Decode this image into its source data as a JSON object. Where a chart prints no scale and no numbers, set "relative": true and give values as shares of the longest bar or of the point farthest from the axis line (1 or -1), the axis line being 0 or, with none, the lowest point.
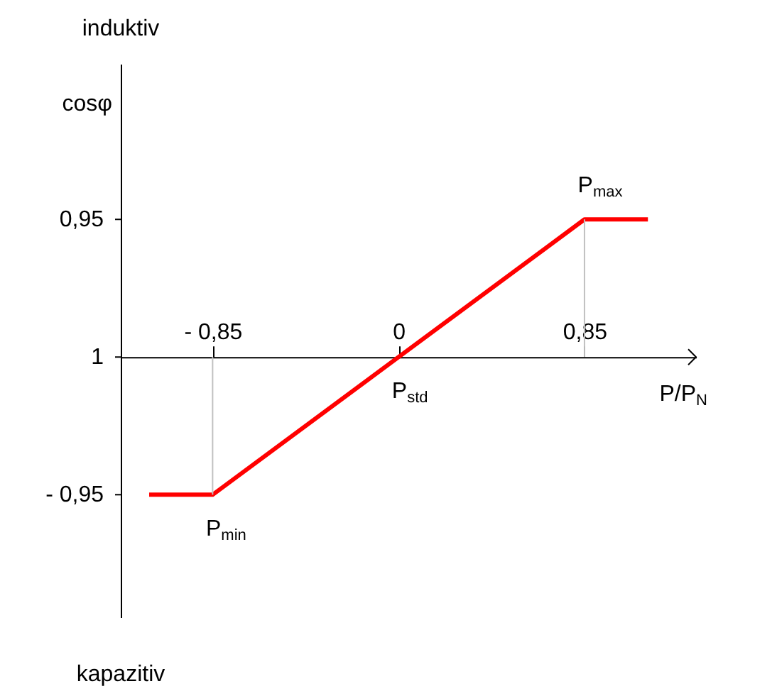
{
  "chart_data": {
    "type": "line",
    "relative": true,
    "xlabel": "P/P$_{N}$",
    "ylabel": "cosφ",
    "annotations": [
      "induktiv",
      "kapazitiv",
      "0,95",
      "1",
      "- 0,95",
      {
        "text": "P$_{min}$",
        "x": -0.85,
        "y": -1
      },
      {
        "text": "P$_{std}$",
        "x": 0,
        "y": 0
      },
      {
        "text": "P$_{max}$",
        "x": 0.85,
        "y": 1
      }
    ],
    "series": [
      {
        "x": [
          -1.14,
          -0.85,
          0.85,
          1.14
        ],
        "values": [
          -1,
          -1,
          1,
          1
        ],
        "color": "#ff0000"
      },
      {
        "x": [
          -0.85,
          -0.85
        ],
        "values": [
          -1,
          0
        ],
        "color": "#c0c0c0"
      },
      {
        "x": [
          0.85,
          0.85
        ],
        "values": [
          0,
          1
        ],
        "color": "#c0c0c0"
      }
    ],
    "xlim": [
      -1.27,
      1.36
    ],
    "xticks": [
      {
        "value": -0.85,
        "label": "- 0,85"
      },
      {
        "value": 0,
        "label": "0"
      },
      {
        "value": 0.85,
        "label": "0,85"
      }
    ],
    "grid": false,
    "marker": "none",
    "line_style": "solid"
  }
}
